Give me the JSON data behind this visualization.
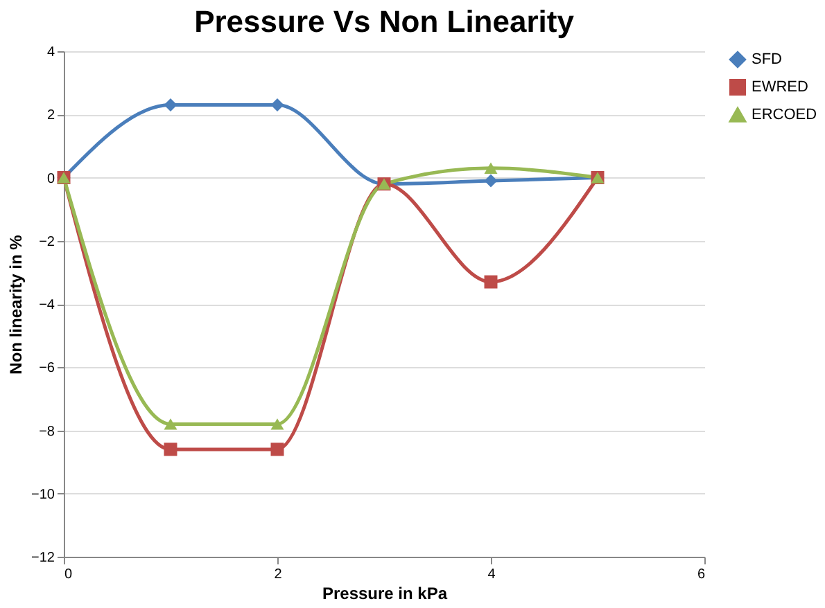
{
  "chart_data": {
    "type": "line",
    "title": "Pressure Vs Non Linearity",
    "xlabel": "Pressure in kPa",
    "ylabel": "Non linearity in %",
    "x": [
      0,
      1,
      2,
      3,
      4,
      5
    ],
    "series": [
      {
        "name": "SFD",
        "color": "#4a7ebb",
        "marker": "diamond",
        "values": [
          0,
          2.3,
          2.3,
          -0.2,
          -0.1,
          0
        ]
      },
      {
        "name": "EWRED",
        "color": "#be4b48",
        "marker": "square",
        "values": [
          0,
          -8.6,
          -8.6,
          -0.2,
          -3.3,
          0
        ]
      },
      {
        "name": "ERCOED",
        "color": "#98b954",
        "marker": "triangle",
        "values": [
          0,
          -7.8,
          -7.8,
          -0.2,
          0.3,
          0
        ]
      }
    ],
    "xlim": [
      0,
      6
    ],
    "xticks": [
      0,
      2,
      4,
      6
    ],
    "ylim": [
      -12,
      4
    ],
    "yticks": [
      -12,
      -10,
      -8,
      -6,
      -4,
      -2,
      0,
      2,
      4
    ],
    "grid": "y",
    "legend": "right",
    "line_style": "solid"
  }
}
